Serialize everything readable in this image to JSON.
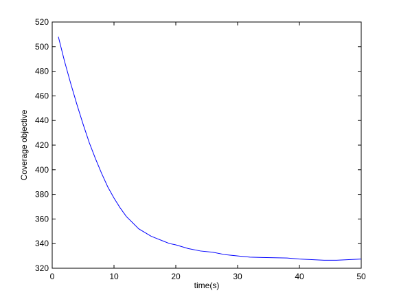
{
  "chart_data": {
    "type": "line",
    "xlabel": "time(s)",
    "ylabel": "Coverage objective",
    "x": [
      1,
      2,
      3,
      4,
      5,
      6,
      7,
      8,
      9,
      10,
      11,
      12,
      13,
      14,
      15,
      16,
      17,
      18,
      19,
      20,
      22,
      24,
      26,
      28,
      30,
      32,
      34,
      36,
      38,
      40,
      42,
      44,
      46,
      48,
      50
    ],
    "series": [
      {
        "color": "#0000ff",
        "values": [
          508,
          488,
          470,
          453,
          437,
          422,
          409,
          397,
          386,
          377,
          369,
          362,
          357,
          352,
          349,
          346,
          344,
          342,
          340,
          339,
          336,
          334,
          333,
          331,
          330,
          329,
          328.7,
          328.5,
          328.3,
          327.5,
          327,
          326.5,
          326.5,
          327,
          327.5
        ]
      }
    ],
    "xlim": [
      0,
      50
    ],
    "xticks": [
      0,
      10,
      20,
      30,
      40,
      50
    ],
    "ylim": [
      320,
      520
    ],
    "yticks": [
      320,
      340,
      360,
      380,
      400,
      420,
      440,
      460,
      480,
      500,
      520
    ]
  }
}
